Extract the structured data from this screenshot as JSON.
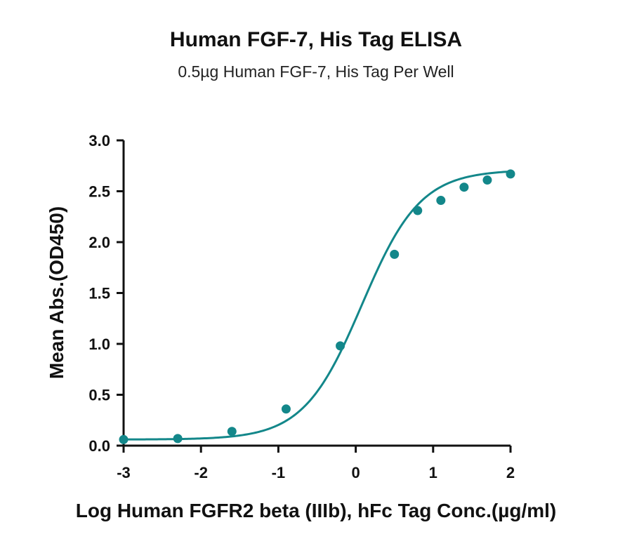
{
  "chart_data": {
    "type": "scatter",
    "title": "Human FGF-7, His Tag ELISA",
    "subtitle": "0.5µg Human FGF-7, His Tag Per Well",
    "xlabel": "Log Human FGFR2 beta (IIIb), hFc Tag Conc.(µg/ml)",
    "ylabel": "Mean Abs.(OD450)",
    "xlim": [
      -3,
      2
    ],
    "ylim": [
      0,
      3
    ],
    "xticks": [
      "-3",
      "-2",
      "-1",
      "0",
      "1",
      "2"
    ],
    "yticks": [
      "0.0",
      "0.5",
      "1.0",
      "1.5",
      "2.0",
      "2.5",
      "3.0"
    ],
    "grid": false,
    "fit": "sigmoidal (4PL) curve",
    "series": [
      {
        "points": [
          {
            "x": -3.0,
            "y": 0.06
          },
          {
            "x": -2.3,
            "y": 0.07
          },
          {
            "x": -1.6,
            "y": 0.14
          },
          {
            "x": -0.9,
            "y": 0.36
          },
          {
            "x": -0.2,
            "y": 0.98
          },
          {
            "x": 0.5,
            "y": 1.88
          },
          {
            "x": 0.8,
            "y": 2.31
          },
          {
            "x": 1.1,
            "y": 2.41
          },
          {
            "x": 1.4,
            "y": 2.54
          },
          {
            "x": 1.7,
            "y": 2.61
          },
          {
            "x": 2.0,
            "y": 2.67
          }
        ]
      }
    ],
    "colors": {
      "series": "#13878a",
      "axis": "#111111"
    }
  }
}
